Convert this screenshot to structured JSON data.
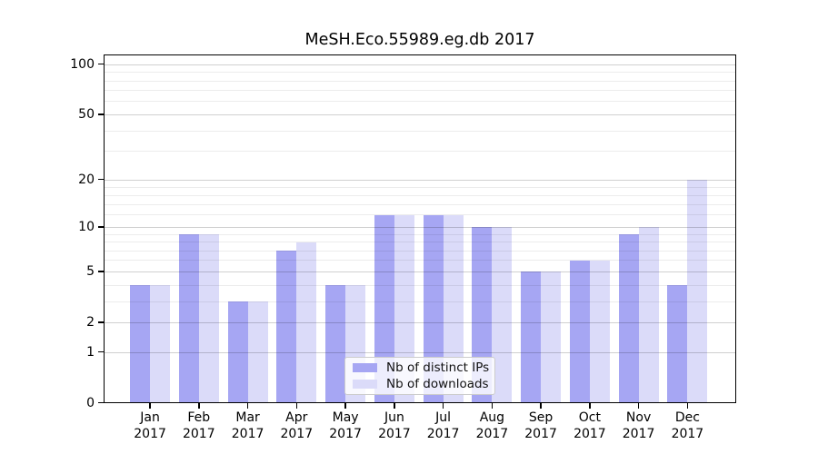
{
  "title": "MeSH.Eco.55989.eg.db 2017",
  "chart_data": {
    "type": "bar",
    "title": "MeSH.Eco.55989.eg.db 2017",
    "categories": [
      "Jan",
      "Feb",
      "Mar",
      "Apr",
      "May",
      "Jun",
      "Jul",
      "Aug",
      "Sep",
      "Oct",
      "Nov",
      "Dec"
    ],
    "x_year_label": "2017",
    "series": [
      {
        "name": "Nb of distinct IPs",
        "color": "#a6a6f3",
        "values": [
          4,
          9,
          3,
          7,
          4,
          12,
          12,
          10,
          5,
          6,
          9,
          4
        ]
      },
      {
        "name": "Nb of downloads",
        "color": "#dbdbf9",
        "values": [
          4,
          9,
          3,
          8,
          4,
          12,
          12,
          10,
          5,
          6,
          10,
          20
        ]
      }
    ],
    "yticks": [
      0,
      1,
      2,
      5,
      10,
      20,
      50,
      100
    ],
    "minor_yticks": [
      3,
      4,
      6,
      7,
      8,
      9,
      12,
      14,
      16,
      18,
      30,
      40,
      60,
      70,
      80,
      90
    ],
    "ylim": [
      0,
      114
    ],
    "yscale": "log1p",
    "grid": "on",
    "legend_position": "lower center",
    "axis_color": "#000000",
    "background_color": "#ffffff"
  }
}
